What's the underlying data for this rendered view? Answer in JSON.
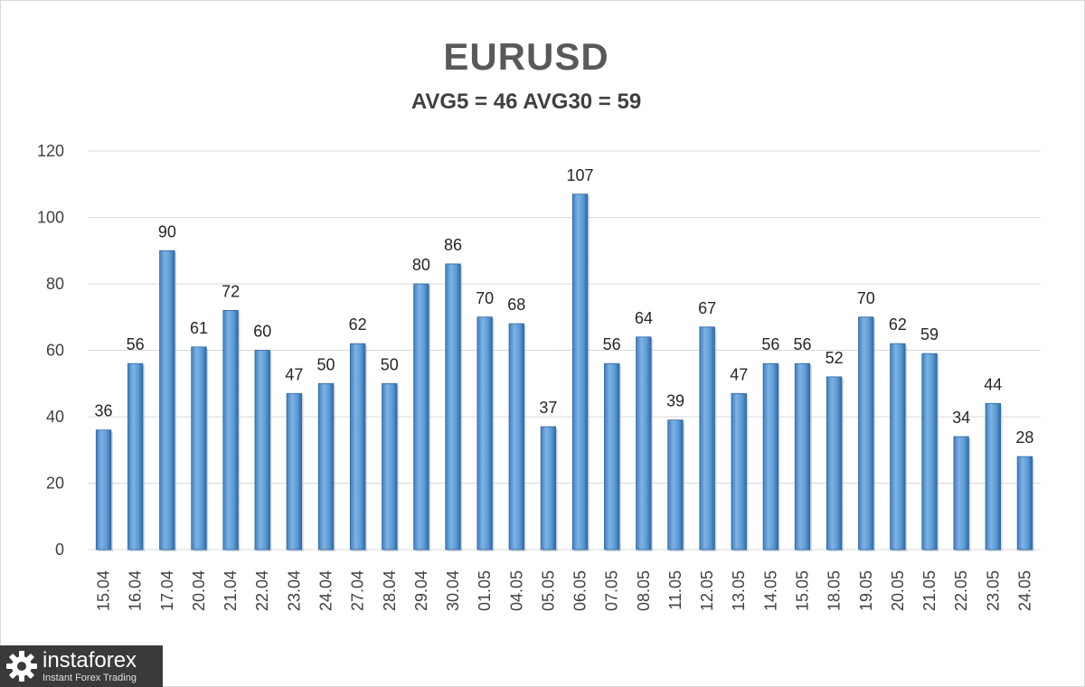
{
  "chart_data": {
    "type": "bar",
    "title": "EURUSD",
    "subtitle": "AVG5 = 46 AVG30 = 59",
    "categories": [
      "15.04",
      "16.04",
      "17.04",
      "20.04",
      "21.04",
      "22.04",
      "23.04",
      "24.04",
      "27.04",
      "28.04",
      "29.04",
      "30.04",
      "01.05",
      "04.05",
      "05.05",
      "06.05",
      "07.05",
      "08.05",
      "11.05",
      "12.05",
      "13.05",
      "14.05",
      "15.05",
      "18.05",
      "19.05",
      "20.05",
      "21.05",
      "22.05",
      "23.05",
      "24.05"
    ],
    "values": [
      36,
      56,
      90,
      61,
      72,
      60,
      47,
      50,
      62,
      50,
      80,
      86,
      70,
      68,
      37,
      107,
      56,
      64,
      39,
      67,
      47,
      56,
      56,
      52,
      70,
      62,
      59,
      34,
      44,
      28
    ],
    "ylim": [
      0,
      120
    ],
    "yticks": [
      0,
      20,
      40,
      60,
      80,
      100,
      120
    ],
    "grid": true,
    "legend": "none",
    "bar_color": "#5b9bd5",
    "data_labels": true
  },
  "logo": {
    "brand": "instaforex",
    "tagline": "Instant Forex Trading",
    "icon": "gear-icon",
    "background": "#3a3a3a"
  }
}
